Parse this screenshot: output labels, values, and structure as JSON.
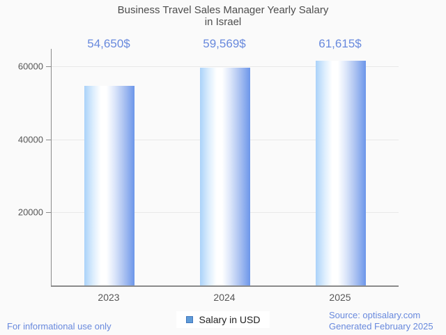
{
  "page": {
    "background": "#fafafa"
  },
  "chart_data": {
    "type": "bar",
    "title": "Business Travel Sales Manager Yearly Salary in Israel",
    "title_lines": [
      "Business Travel Sales Manager Yearly Salary",
      "in Israel"
    ],
    "categories": [
      "2023",
      "2024",
      "2025"
    ],
    "series": [
      {
        "name": "Salary in USD",
        "values": [
          54650,
          59569,
          61615
        ]
      }
    ],
    "value_labels": [
      "54,650$",
      "59,569$",
      "61,615$"
    ],
    "y_ticks": [
      20000,
      40000,
      60000
    ],
    "y_tick_labels": [
      "20000",
      "40000",
      "60000"
    ],
    "ylim": [
      0,
      64800
    ],
    "xlabel": "",
    "ylabel": "",
    "grid": true,
    "legend_position": "bottom"
  },
  "legend": {
    "label": "Salary in USD"
  },
  "footer": {
    "left": "For informational use only",
    "source": "Source: optisalary.com",
    "generated": "Generated February 2025"
  },
  "colors": {
    "accent_blue": "#6889dd",
    "title_text": "#4d4d4d",
    "axis_label_text": "#565656",
    "legend_text": "#212121",
    "axis": "#8a8a8a",
    "gridline": "#e8e8e8",
    "bar_gradient_left": "#aad2f9",
    "bar_gradient_highlight": "#ffffff",
    "bar_gradient_right": "#6c96ea",
    "legend_marker_fill": "#5f9bd8",
    "legend_marker_border": "#4076bd"
  }
}
